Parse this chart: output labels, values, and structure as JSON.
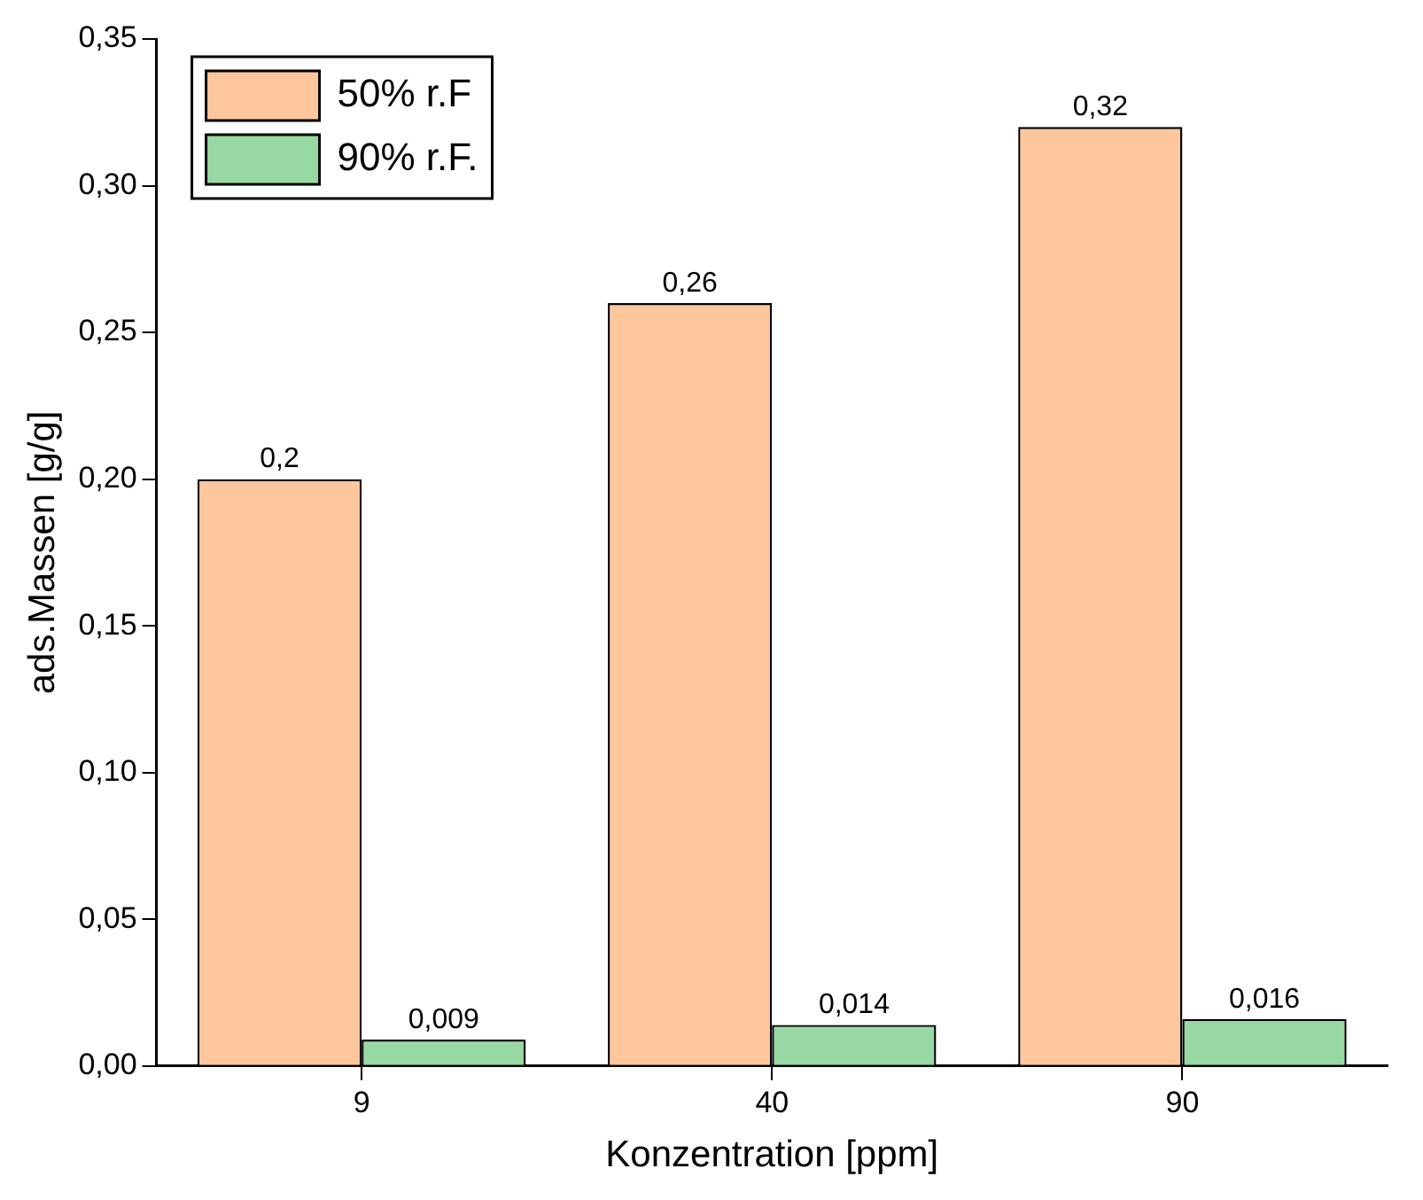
{
  "chart_data": {
    "type": "bar",
    "xlabel": "Konzentration [ppm]",
    "ylabel": "ads.Massen [g/g]",
    "categories": [
      "9",
      "40",
      "90"
    ],
    "series": [
      {
        "name": "50% r.F",
        "color": "#fdc69c",
        "values": [
          0.2,
          0.26,
          0.32
        ],
        "value_labels": [
          "0,2",
          "0,26",
          "0,32"
        ]
      },
      {
        "name": "90% r.F.",
        "color": "#98d9a3",
        "values": [
          0.009,
          0.014,
          0.016
        ],
        "value_labels": [
          "0,009",
          "0,014",
          "0,016"
        ]
      }
    ],
    "ylim": [
      0,
      0.35
    ],
    "yticks": [
      {
        "value": 0,
        "label": "0,00"
      },
      {
        "value": 0.05,
        "label": "0,05"
      },
      {
        "value": 0.1,
        "label": "0,10"
      },
      {
        "value": 0.15,
        "label": "0,15"
      },
      {
        "value": 0.2,
        "label": "0,20"
      },
      {
        "value": 0.25,
        "label": "0,25"
      },
      {
        "value": 0.3,
        "label": "0,30"
      },
      {
        "value": 0.35,
        "label": "0,35"
      }
    ],
    "legend": "top left",
    "grid": false
  }
}
